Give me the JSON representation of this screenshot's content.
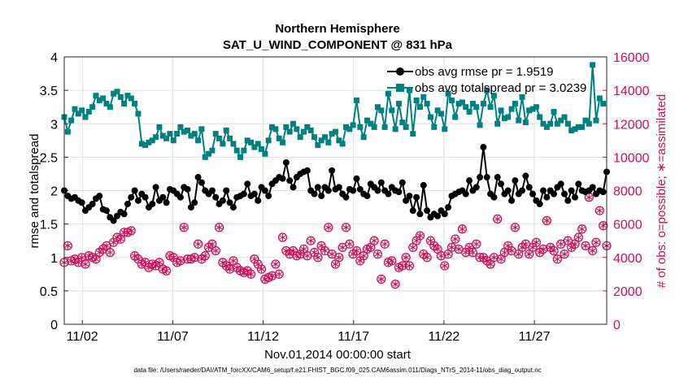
{
  "chart_data": {
    "type": "line",
    "title": "Northern Hemisphere",
    "subtitle": "SAT_U_WIND_COMPONENT @ 831 hPa",
    "xlabel": "Nov.01,2014 00:00:00 start",
    "ylabel": "rmse and totalspread",
    "ylabel_right": "# of obs: o=possible; ∗=assimilated",
    "footnote": "data file: /Users/raeder/DAI/ATM_forcXX/CAM6_setup/f.e21.FHIST_BGC.f09_025.CAM6assim.011/Diags_NTrS_2014-11/obs_diag_output.nc",
    "x_tick_labels": [
      "11/02",
      "11/07",
      "11/12",
      "11/17",
      "11/22",
      "11/27"
    ],
    "x_tick_days": [
      2,
      7,
      12,
      17,
      22,
      27
    ],
    "xlim_days": [
      1,
      31
    ],
    "ylim": [
      0,
      4
    ],
    "y_ticks": [
      "0",
      "0.5",
      "1",
      "1.5",
      "2",
      "2.5",
      "3",
      "3.5",
      "4"
    ],
    "ylim_right": [
      0,
      16000
    ],
    "y_ticks_right": [
      "0",
      "2000",
      "4000",
      "6000",
      "8000",
      "10000",
      "12000",
      "14000",
      "16000"
    ],
    "grid": true,
    "legend_position": "top-right",
    "colors": {
      "rmse": "#000000",
      "spread": "#00807f",
      "obs": "#cc0e5b"
    },
    "series": [
      {
        "name": "obs avg rmse pr = 1.9519",
        "axis": "left",
        "marker": "circle",
        "values": [
          2.0,
          1.92,
          1.88,
          1.9,
          1.85,
          1.82,
          1.7,
          1.75,
          1.8,
          1.88,
          1.92,
          1.72,
          1.7,
          1.6,
          1.55,
          1.62,
          1.68,
          1.65,
          1.8,
          1.9,
          2.0,
          1.85,
          1.95,
          1.9,
          1.75,
          1.8,
          2.05,
          1.85,
          1.9,
          1.82,
          2.02,
          2.0,
          1.95,
          1.9,
          2.05,
          2.02,
          1.75,
          1.82,
          2.2,
          2.12,
          2.0,
          1.95,
          2.0,
          1.9,
          1.8,
          1.85,
          2.0,
          1.82,
          1.75,
          1.9,
          1.92,
          1.95,
          2.1,
          1.92,
          1.95,
          1.85,
          2.05,
          2.0,
          1.92,
          2.1,
          2.15,
          2.2,
          2.18,
          2.42,
          2.15,
          2.05,
          2.2,
          2.25,
          2.28,
          2.3,
          2.0,
          1.95,
          2.05,
          1.92,
          2.05,
          2.0,
          2.3,
          2.02,
          2.05,
          1.95,
          1.9,
          2.02,
          2.0,
          2.18,
          2.02,
          1.95,
          1.92,
          2.1,
          2.05,
          2.0,
          2.12,
          2.0,
          1.95,
          2.05,
          2.0,
          1.98,
          2.12,
          1.85,
          1.92,
          1.7,
          1.9,
          1.65,
          2.08,
          1.7,
          1.6,
          1.65,
          1.62,
          1.7,
          1.65,
          1.75,
          1.92,
          1.95,
          1.98,
          2.0,
          1.95,
          2.15,
          2.0,
          2.05,
          2.2,
          2.65,
          2.2,
          1.95,
          1.9,
          2.2,
          2.1,
          1.95,
          2.0,
          1.85,
          2.15,
          1.95,
          2.0,
          2.22,
          2.05,
          1.95,
          1.85,
          1.8,
          2.0,
          1.9,
          2.0,
          1.95,
          2.05,
          2.1,
          1.95,
          1.85,
          2.0,
          1.9,
          2.1,
          2.0,
          1.98,
          2.0,
          2.05,
          1.95,
          2.0,
          1.98,
          2.28
        ]
      },
      {
        "name": "obs avg totalspread pr = 3.0239",
        "axis": "left",
        "marker": "square",
        "values": [
          3.1,
          2.88,
          3.05,
          3.22,
          3.15,
          3.2,
          3.1,
          3.18,
          3.25,
          3.42,
          3.35,
          3.38,
          3.3,
          3.25,
          3.45,
          3.48,
          3.4,
          3.3,
          3.42,
          3.38,
          3.3,
          3.15,
          2.7,
          2.68,
          2.72,
          2.75,
          2.8,
          2.95,
          2.82,
          2.78,
          2.85,
          2.75,
          2.85,
          2.95,
          2.88,
          2.9,
          2.82,
          2.85,
          2.75,
          2.92,
          2.5,
          2.55,
          2.6,
          2.85,
          2.78,
          2.7,
          2.9,
          2.78,
          2.7,
          2.6,
          2.5,
          2.6,
          2.75,
          2.72,
          2.65,
          2.7,
          2.62,
          2.55,
          2.75,
          2.95,
          2.92,
          2.78,
          2.72,
          2.95,
          2.88,
          3.0,
          2.92,
          2.8,
          2.88,
          2.95,
          2.9,
          2.8,
          2.68,
          2.75,
          2.8,
          2.72,
          2.85,
          2.88,
          2.75,
          2.7,
          2.95,
          2.92,
          2.98,
          3.35,
          2.95,
          2.8,
          3.05,
          3.0,
          2.95,
          3.25,
          3.2,
          2.95,
          3.45,
          3.2,
          2.92,
          3.3,
          3.02,
          2.95,
          3.5,
          2.85,
          3.35,
          3.25,
          3.4,
          3.3,
          3.1,
          2.95,
          3.2,
          3.15,
          2.92,
          3.45,
          3.35,
          3.1,
          3.3,
          3.32,
          3.25,
          3.18,
          3.3,
          3.25,
          2.98,
          3.3,
          3.5,
          3.25,
          3.42,
          3.0,
          3.2,
          3.08,
          3.1,
          3.22,
          3.3,
          3.05,
          3.4,
          3.02,
          3.2,
          3.22,
          3.25,
          3.1,
          3.0,
          2.95,
          3.0,
          3.18,
          3.0,
          3.05,
          3.1,
          3.0,
          2.9,
          2.92,
          2.95,
          2.95,
          3.05,
          3.0,
          3.88,
          3.05,
          3.38,
          3.3
        ]
      },
      {
        "name": "possible",
        "axis": "right",
        "marker": "open-circle",
        "values": [
          3700,
          4700,
          3800,
          3900,
          3700,
          4000,
          3600,
          4100,
          4000,
          3900,
          4300,
          4500,
          4700,
          4300,
          4900,
          5200,
          5100,
          5500,
          5500,
          5600,
          4100,
          3900,
          3600,
          3700,
          3400,
          3600,
          3500,
          3700,
          3300,
          3200,
          4100,
          4000,
          3700,
          3800,
          5800,
          3900,
          3900,
          4000,
          4800,
          3900,
          4100,
          4600,
          4800,
          4400,
          5800,
          3700,
          3500,
          3300,
          3800,
          3400,
          3200,
          3100,
          3200,
          3000,
          3900,
          3600,
          3300,
          2700,
          2800,
          2900,
          3600,
          3000,
          5200,
          4400,
          4200,
          4400,
          4100,
          4200,
          4500,
          4100,
          5000,
          4300,
          4000,
          4700,
          4400,
          5800,
          4200,
          3600,
          4000,
          4600,
          5800,
          4800,
          4200,
          4400,
          3800,
          4100,
          4500,
          4600,
          5000,
          4200,
          2700,
          4800,
          3700,
          3800,
          2400,
          3400,
          3500,
          4000,
          3500,
          4600,
          5000,
          5300,
          4200,
          4000,
          5000,
          4700,
          4500,
          4100,
          3500,
          4200,
          4600,
          5100,
          4500,
          5700,
          4300,
          4600,
          4300,
          4800,
          4000,
          4000,
          3800,
          3600,
          4000,
          6300,
          3900,
          4300,
          4700,
          4400,
          5800,
          4200,
          4600,
          4800,
          4200,
          4600,
          4900,
          4300,
          4500,
          6200,
          4600,
          4400,
          3900,
          4800,
          4200,
          5000,
          4600,
          4800,
          5200,
          5700,
          4700,
          7600,
          4400,
          4900,
          6800,
          5900,
          4700,
          3900,
          5400,
          2300,
          4000,
          3900,
          0
        ]
      },
      {
        "name": "assimilated",
        "axis": "right",
        "marker": "asterisk",
        "values": [
          3700,
          4700,
          3800,
          3900,
          3700,
          4000,
          3600,
          4100,
          4000,
          3900,
          4300,
          4500,
          4700,
          4300,
          4900,
          5200,
          5100,
          5500,
          5500,
          5600,
          4100,
          3900,
          3600,
          3700,
          3400,
          3600,
          3500,
          3700,
          3300,
          3200,
          4100,
          4000,
          3700,
          3800,
          5800,
          3900,
          3900,
          4000,
          4800,
          3900,
          4100,
          4600,
          4800,
          4400,
          5800,
          3700,
          3500,
          3300,
          3800,
          3400,
          3200,
          3100,
          3200,
          3000,
          3900,
          3600,
          3300,
          2700,
          2800,
          2900,
          3600,
          3000,
          5200,
          4400,
          4200,
          4400,
          4100,
          4200,
          4500,
          4100,
          5000,
          4300,
          4000,
          4700,
          4400,
          5800,
          4200,
          3600,
          4000,
          4600,
          5800,
          4800,
          4200,
          4400,
          3800,
          4100,
          4500,
          4600,
          5000,
          4200,
          2700,
          4800,
          3700,
          3800,
          2400,
          3400,
          3500,
          4000,
          3500,
          4600,
          5000,
          5300,
          4200,
          4000,
          5000,
          4700,
          4500,
          4100,
          3500,
          4200,
          4600,
          5100,
          4500,
          5700,
          4300,
          4600,
          4300,
          4800,
          4000,
          4000,
          3800,
          3600,
          4000,
          6300,
          3900,
          4300,
          4700,
          4400,
          5800,
          4200,
          4600,
          4800,
          4200,
          4600,
          4900,
          4300,
          4500,
          6200,
          4600,
          4400,
          3900,
          4800,
          4200,
          5000,
          4600,
          4800,
          5200,
          5700,
          4700,
          7600,
          4400,
          4900,
          6800,
          5900,
          4700,
          3900,
          5400,
          2300,
          4000,
          3900,
          0
        ]
      }
    ]
  }
}
